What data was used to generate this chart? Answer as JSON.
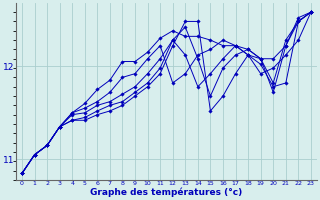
{
  "xlabel": "Graphe des températures (°c)",
  "background_color": "#d8eeed",
  "grid_color": "#aacece",
  "line_color": "#0000bb",
  "x_hours": [
    0,
    1,
    2,
    3,
    4,
    5,
    6,
    7,
    8,
    9,
    10,
    11,
    12,
    13,
    14,
    15,
    16,
    17,
    18,
    19,
    20,
    21,
    22,
    23
  ],
  "series": [
    [
      10.85,
      11.05,
      11.15,
      11.35,
      11.5,
      11.6,
      11.75,
      11.85,
      12.05,
      12.05,
      12.15,
      12.3,
      12.38,
      12.32,
      12.32,
      12.28,
      12.22,
      12.22,
      12.12,
      12.08,
      12.08,
      12.22,
      12.48,
      12.58
    ],
    [
      10.85,
      11.05,
      11.15,
      11.35,
      11.5,
      11.55,
      11.62,
      11.72,
      11.88,
      11.92,
      12.08,
      12.22,
      11.82,
      11.92,
      12.12,
      12.18,
      12.28,
      12.22,
      12.12,
      11.92,
      11.98,
      12.12,
      12.28,
      12.58
    ],
    [
      10.85,
      11.05,
      11.15,
      11.35,
      11.48,
      11.5,
      11.58,
      11.62,
      11.7,
      11.78,
      11.92,
      12.08,
      12.28,
      12.12,
      11.78,
      11.92,
      12.08,
      12.22,
      12.18,
      12.08,
      11.82,
      12.28,
      12.48,
      12.58
    ],
    [
      10.85,
      11.05,
      11.15,
      11.35,
      11.42,
      11.45,
      11.52,
      11.58,
      11.62,
      11.72,
      11.82,
      11.98,
      12.28,
      12.42,
      12.08,
      11.68,
      11.98,
      12.12,
      12.18,
      12.08,
      11.72,
      12.22,
      12.52,
      12.58
    ],
    [
      10.85,
      11.05,
      11.15,
      11.35,
      11.42,
      11.42,
      11.48,
      11.52,
      11.58,
      11.68,
      11.78,
      11.92,
      12.22,
      12.48,
      12.48,
      11.52,
      11.68,
      11.92,
      12.12,
      12.02,
      11.78,
      11.82,
      12.48,
      12.58
    ]
  ],
  "ylim": [
    10.78,
    12.68
  ],
  "yticks": [
    11,
    12
  ],
  "xticks": [
    0,
    1,
    2,
    3,
    4,
    5,
    6,
    7,
    8,
    9,
    10,
    11,
    12,
    13,
    14,
    15,
    16,
    17,
    18,
    19,
    20,
    21,
    22,
    23
  ]
}
